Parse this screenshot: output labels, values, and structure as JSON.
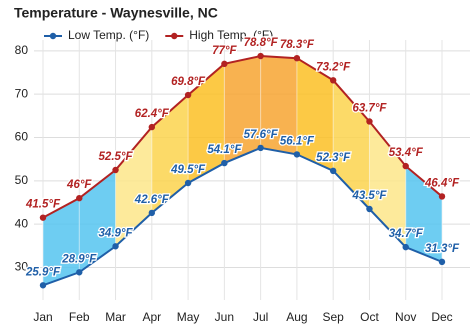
{
  "chart_data": {
    "type": "line",
    "title": "Temperature - Waynesville, NC",
    "categories": [
      "Jan",
      "Feb",
      "Mar",
      "Apr",
      "May",
      "Jun",
      "Jul",
      "Aug",
      "Sep",
      "Oct",
      "Nov",
      "Dec"
    ],
    "series": [
      {
        "name": "Low Temp. (°F)",
        "color": "#1f5fa8",
        "values": [
          25.9,
          28.9,
          34.9,
          42.6,
          49.5,
          54.1,
          57.6,
          56.1,
          52.3,
          43.5,
          34.7,
          31.3
        ],
        "value_labels": [
          "25.9°F",
          "28.9°F",
          "34.9°F",
          "42.6°F",
          "49.5°F",
          "54.1°F",
          "57.6°F",
          "56.1°F",
          "52.3°F",
          "43.5°F",
          "34.7°F",
          "31.3°F"
        ]
      },
      {
        "name": "High Temp. (°F)",
        "color": "#b22222",
        "values": [
          41.5,
          46,
          52.5,
          62.4,
          69.8,
          77,
          78.8,
          78.3,
          73.2,
          63.7,
          53.4,
          46.4
        ],
        "value_labels": [
          "41.5°F",
          "46°F",
          "52.5°F",
          "62.4°F",
          "69.8°F",
          "77°F",
          "78.8°F",
          "78.3°F",
          "73.2°F",
          "63.7°F",
          "53.4°F",
          "46.4°F"
        ]
      }
    ],
    "ylim": [
      22.5,
      82.5
    ],
    "yticks": [
      30,
      40,
      50,
      60,
      70,
      80
    ],
    "grid": true
  }
}
